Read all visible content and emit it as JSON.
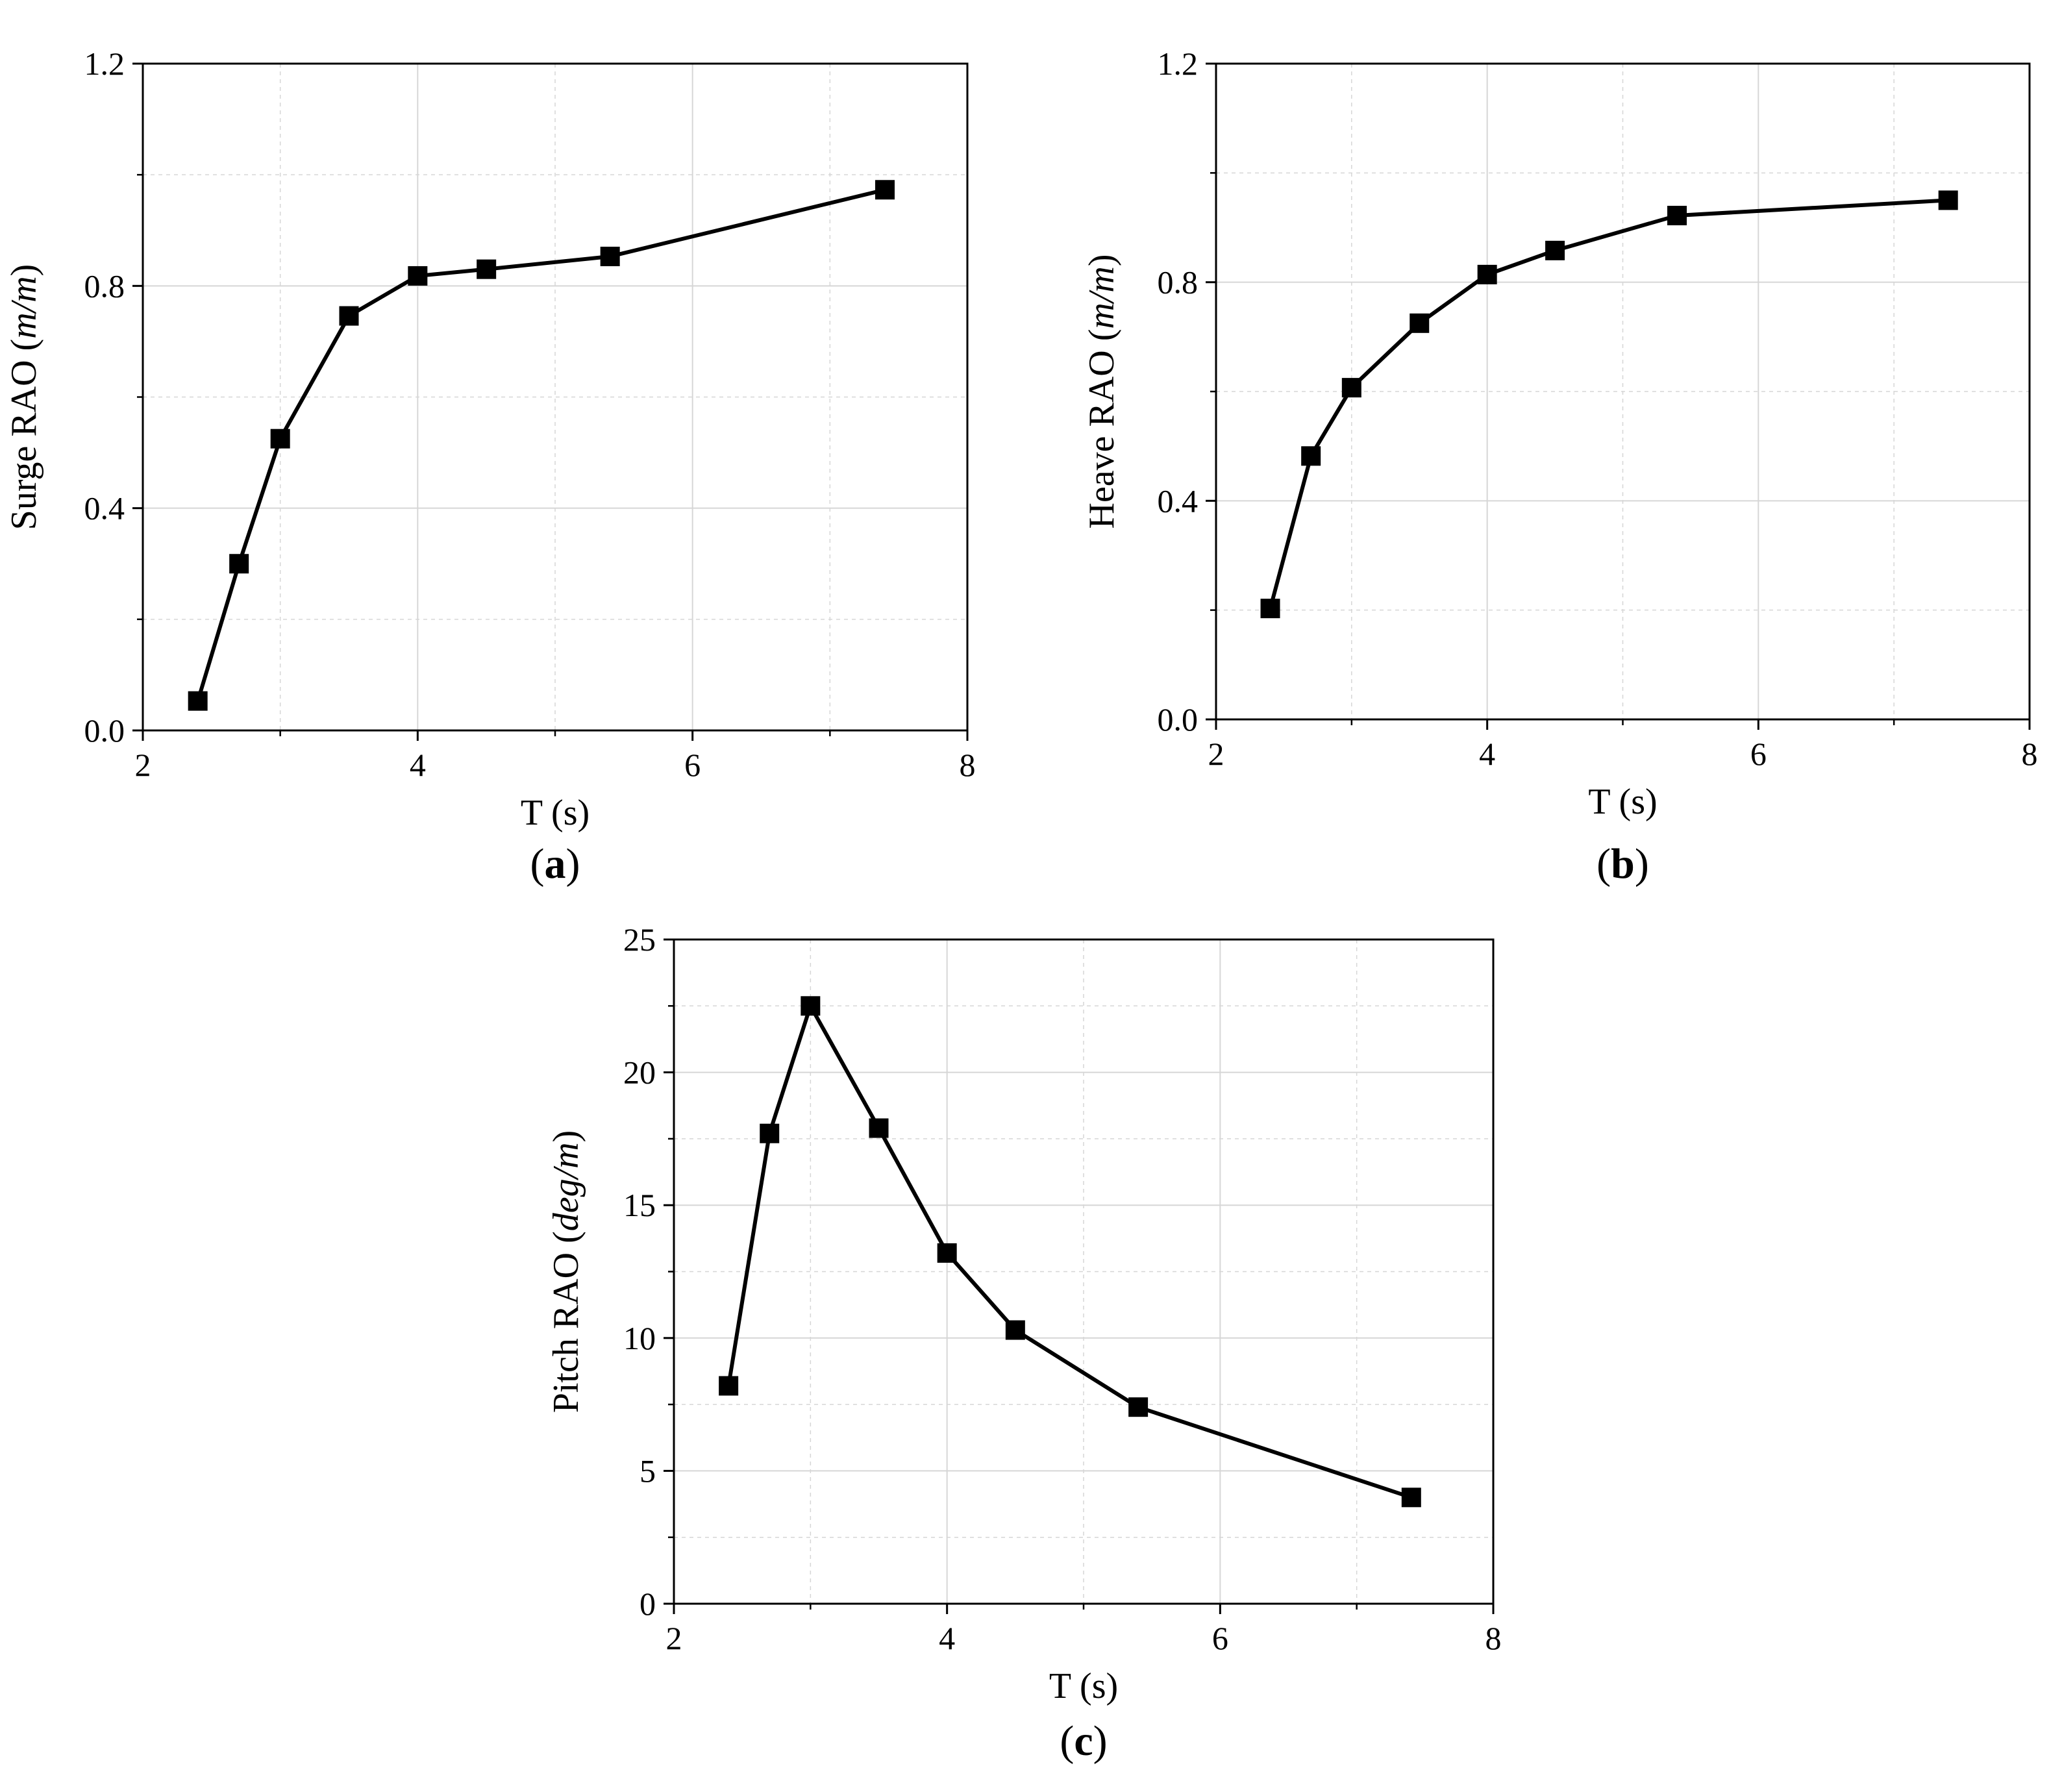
{
  "chart_data": [
    {
      "panel_label": "a",
      "type": "line",
      "xlabel": "T (s)",
      "ylabel_prefix": "Surge RAO (",
      "ylabel_unit": "m/m",
      "ylabel_suffix": ")",
      "xlim": [
        2,
        8
      ],
      "ylim": [
        0,
        1.2
      ],
      "xticks": [
        "2",
        "4",
        "6",
        "8"
      ],
      "yticks": [
        "0.0",
        "0.4",
        "0.8",
        "1.2"
      ],
      "grid": true,
      "marker": "square",
      "series": [
        {
          "x": [
            2.4,
            2.7,
            3.0,
            3.5,
            4.0,
            4.5,
            5.4,
            7.4
          ],
          "y": [
            0.053,
            0.3,
            0.525,
            0.746,
            0.818,
            0.83,
            0.853,
            0.973
          ]
        }
      ]
    },
    {
      "panel_label": "b",
      "type": "line",
      "xlabel": "T (s)",
      "ylabel_prefix": "Heave RAO (",
      "ylabel_unit": "m/m",
      "ylabel_suffix": ")",
      "xlim": [
        2,
        8
      ],
      "ylim": [
        0,
        1.2
      ],
      "xticks": [
        "2",
        "4",
        "6",
        "8"
      ],
      "yticks": [
        "0.0",
        "0.4",
        "0.8",
        "1.2"
      ],
      "grid": true,
      "marker": "square",
      "series": [
        {
          "x": [
            2.4,
            2.7,
            3.0,
            3.5,
            4.0,
            4.5,
            5.4,
            7.4
          ],
          "y": [
            0.203,
            0.482,
            0.607,
            0.725,
            0.814,
            0.858,
            0.922,
            0.95
          ]
        }
      ]
    },
    {
      "panel_label": "c",
      "type": "line",
      "xlabel": "T (s)",
      "ylabel_prefix": "Pitch RAO (",
      "ylabel_unit": "deg/m",
      "ylabel_suffix": ")",
      "xlim": [
        2,
        8
      ],
      "ylim": [
        0,
        25
      ],
      "xticks": [
        "2",
        "4",
        "6",
        "8"
      ],
      "yticks": [
        "0",
        "5",
        "10",
        "15",
        "20",
        "25"
      ],
      "grid": true,
      "marker": "square",
      "series": [
        {
          "x": [
            2.4,
            2.7,
            3.0,
            3.5,
            4.0,
            4.5,
            5.4,
            7.4
          ],
          "y": [
            8.2,
            17.7,
            22.5,
            17.9,
            13.2,
            10.3,
            7.4,
            4.0
          ]
        }
      ]
    }
  ]
}
